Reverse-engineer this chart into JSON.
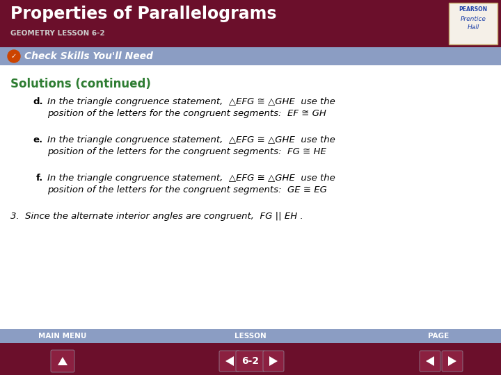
{
  "title": "Properties of Parallelograms",
  "subtitle": "GEOMETRY LESSON 6-2",
  "header_bg": "#6B0F2B",
  "subheader_bg": "#8B9DC3",
  "subheader_text": "Check Skills You'll Need",
  "solutions_title": "Solutions (continued)",
  "solutions_color": "#2E7D32",
  "body_bg": "#FFFFFF",
  "title_color": "#FFFFFF",
  "footer_bg_top": "#8B9DC3",
  "footer_bg_bottom": "#6B0F2B",
  "footer_labels": [
    "MAIN MENU",
    "LESSON",
    "PAGE"
  ],
  "footer_label_color": "#FFFFFF",
  "lesson_number": "6-2",
  "items": [
    {
      "label": "d.",
      "line1": "In the triangle congruence statement,  △EFG ≅ △GHE  use the",
      "line2": "position of the letters for the congruent segments:  EF ≅ GH"
    },
    {
      "label": "e.",
      "line1": "In the triangle congruence statement,  △EFG ≅ △GHE  use the",
      "line2": "position of the letters for the congruent segments:  FG ≅ HE"
    },
    {
      "label": "f.",
      "line1": "In the triangle congruence statement,  △EFG ≅ △GHE  use the",
      "line2": "position of the letters for the congruent segments:  GE ≅ EG"
    }
  ],
  "item3_line1": "3.  Since the alternate interior angles are congruent,  FG || EH ."
}
